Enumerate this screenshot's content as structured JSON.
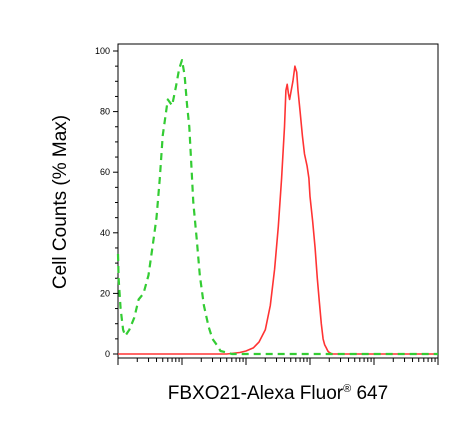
{
  "chart_data": {
    "type": "line",
    "title": "",
    "xlabel_main": "FBXO21-Alexa Fluor",
    "xlabel_sup": "®",
    "xlabel_tail": " 647",
    "ylabel": "Cell Counts (% Max)",
    "x_scale": "log",
    "xlim": [
      1,
      100000
    ],
    "ylim": [
      0,
      100
    ],
    "y_ticks": [
      0,
      20,
      40,
      60,
      80,
      100
    ],
    "y_tick_labels": [
      "0",
      "20",
      "40",
      "60",
      "80",
      "100"
    ],
    "x_tick_labels_shown": false,
    "legend": "none",
    "grid": false,
    "series": [
      {
        "color": "#ff3333",
        "style": "solid",
        "x": [
          1,
          5,
          20,
          50,
          80,
          100,
          130,
          160,
          200,
          240,
          280,
          320,
          360,
          400,
          420,
          440,
          460,
          480,
          500,
          540,
          580,
          620,
          650,
          700,
          760,
          820,
          900,
          960,
          1000,
          1100,
          1200,
          1300,
          1400,
          1500,
          1600,
          1700,
          1800,
          1900,
          2000,
          2200,
          2500,
          3000,
          5000,
          10000,
          20000,
          50000,
          100000
        ],
        "y": [
          0,
          0,
          0,
          0,
          0.5,
          1,
          2,
          4,
          8,
          16,
          28,
          42,
          58,
          75,
          87,
          89,
          86,
          84,
          86,
          90,
          95,
          93,
          87,
          80,
          72,
          66,
          62,
          58,
          52,
          44,
          35,
          25,
          17,
          10,
          5,
          3,
          2,
          1,
          0.5,
          0,
          0,
          0,
          0,
          0,
          0,
          0,
          0
        ]
      },
      {
        "color": "#33cc33",
        "style": "dashed",
        "x": [
          1,
          1.02,
          1.1,
          1.2,
          1.3,
          1.5,
          1.8,
          2.1,
          2.5,
          3,
          3.5,
          4,
          4.5,
          5,
          6,
          7,
          8,
          9,
          10,
          11,
          12,
          13,
          14,
          15,
          17,
          19,
          22,
          26,
          30,
          35,
          40,
          50,
          60,
          80,
          100,
          200,
          1000,
          10000,
          100000
        ],
        "y": [
          33,
          25,
          15,
          8,
          6,
          8,
          12,
          18,
          20,
          26,
          36,
          45,
          58,
          72,
          84,
          82,
          88,
          94,
          97,
          92,
          82,
          75,
          62,
          50,
          38,
          26,
          16,
          9,
          5,
          3,
          1,
          0.5,
          0,
          0,
          0,
          0,
          0,
          0,
          0
        ]
      }
    ]
  }
}
